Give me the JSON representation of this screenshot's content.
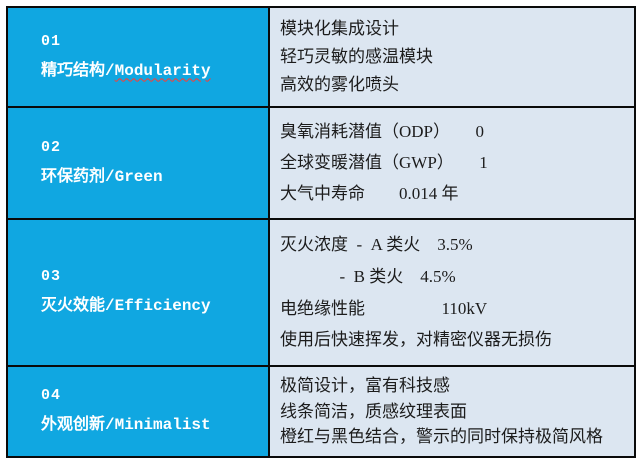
{
  "table": {
    "colors": {
      "accent_cyan": "#10a7e1",
      "cell_light_blue": "#dce6f1",
      "border_black": "#0a0a0a",
      "left_text_white": "#ffffff",
      "right_text_black": "#1c1c1c",
      "spellcheck_red": "#ff3b30"
    },
    "rows": [
      {
        "id": "01",
        "title_zh": "精巧结构/",
        "title_en": "Modularity",
        "lines": [
          "模块化集成设计",
          "轻巧灵敏的感温模块",
          "高效的雾化喷头"
        ]
      },
      {
        "id": "02",
        "title": "环保药剂/Green",
        "lines": [
          "臭氧消耗潜值（ODP）      0",
          "全球变暖潜值（GWP）      1",
          "大气中寿命        0.014 年"
        ]
      },
      {
        "id": "03",
        "title": "灭火效能/Efficiency",
        "lines": [
          "灭火浓度  -  A 类火    3.5%",
          "              -  B 类火    4.5%",
          "电绝缘性能                  110kV",
          "使用后快速挥发，对精密仪器无损伤"
        ]
      },
      {
        "id": "04",
        "title": "外观创新/Minimalist",
        "lines": [
          "极简设计，富有科技感",
          "线条简洁，质感纹理表面",
          "橙红与黑色结合，警示的同时保持极简风格"
        ]
      }
    ]
  }
}
